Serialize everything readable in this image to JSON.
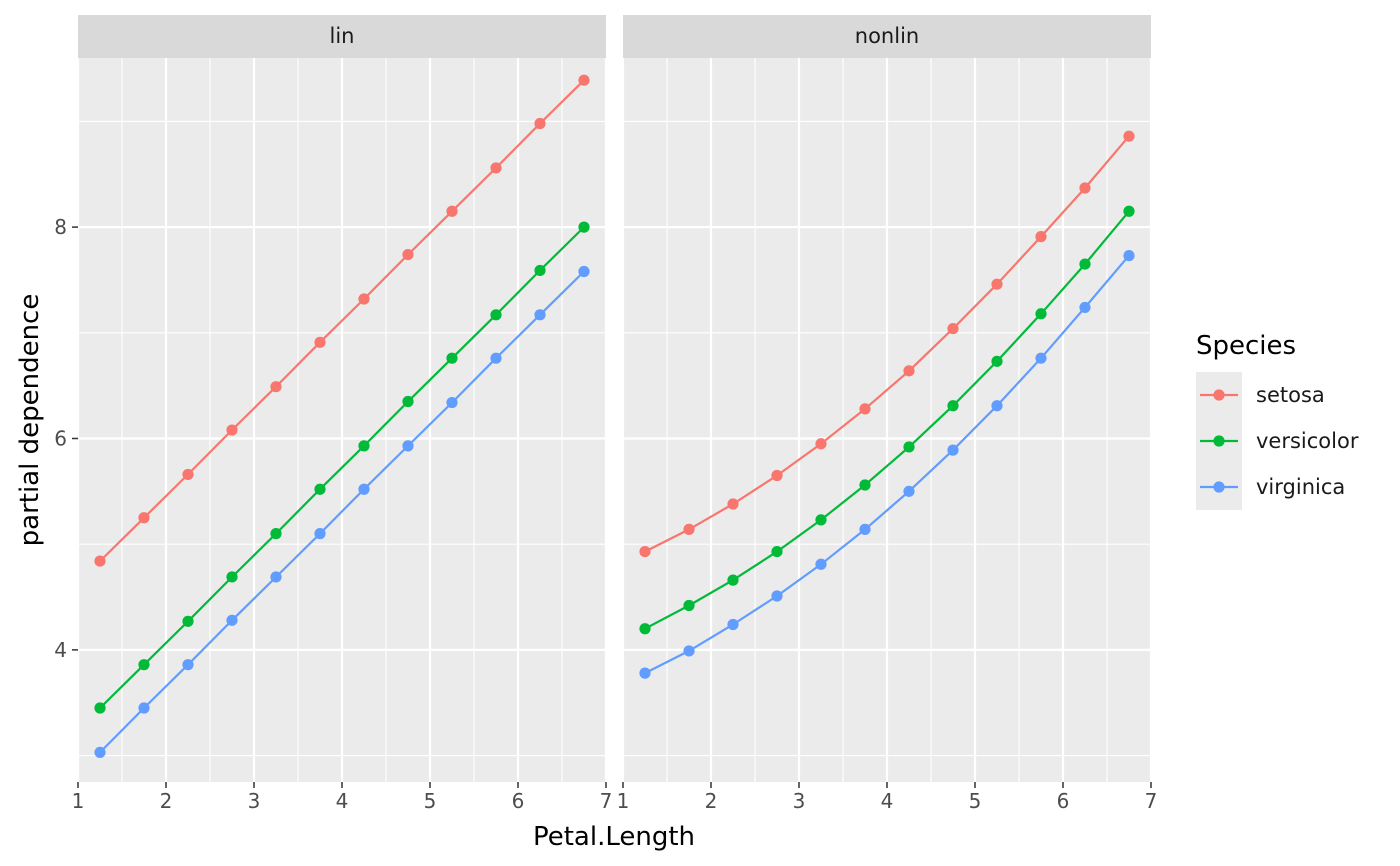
{
  "chart_data": {
    "type": "line",
    "xlabel": "Petal.Length",
    "ylabel": "partial dependence",
    "xlim": [
      1,
      7
    ],
    "ylim": [
      2.75,
      9.6
    ],
    "x_ticks": [
      1,
      2,
      3,
      4,
      5,
      6,
      7
    ],
    "y_ticks": [
      4,
      6,
      8
    ],
    "grid": true,
    "legend": {
      "title": "Species",
      "position": "right"
    },
    "x": [
      1.25,
      1.75,
      2.25,
      2.75,
      3.25,
      3.75,
      4.25,
      4.75,
      5.25,
      5.75,
      6.25,
      6.75
    ],
    "panels": [
      {
        "strip": "lin",
        "series": [
          {
            "name": "setosa",
            "color": "#F8766D",
            "values": [
              4.84,
              5.25,
              5.66,
              6.08,
              6.49,
              6.91,
              7.32,
              7.74,
              8.15,
              8.56,
              8.98,
              9.39
            ]
          },
          {
            "name": "versicolor",
            "color": "#00BA38",
            "values": [
              3.45,
              3.86,
              4.27,
              4.69,
              5.1,
              5.52,
              5.93,
              6.35,
              6.76,
              7.17,
              7.59,
              8.0
            ]
          },
          {
            "name": "virginica",
            "color": "#619CFF",
            "values": [
              3.03,
              3.45,
              3.86,
              4.28,
              4.69,
              5.1,
              5.52,
              5.93,
              6.34,
              6.76,
              7.17,
              7.58
            ]
          }
        ]
      },
      {
        "strip": "nonlin",
        "series": [
          {
            "name": "setosa",
            "color": "#F8766D",
            "values": [
              4.93,
              5.14,
              5.38,
              5.65,
              5.95,
              6.28,
              6.64,
              7.04,
              7.46,
              7.91,
              8.37,
              8.86
            ]
          },
          {
            "name": "versicolor",
            "color": "#00BA38",
            "values": [
              4.2,
              4.42,
              4.66,
              4.93,
              5.23,
              5.56,
              5.92,
              6.31,
              6.73,
              7.18,
              7.65,
              8.15
            ]
          },
          {
            "name": "virginica",
            "color": "#619CFF",
            "values": [
              3.78,
              3.99,
              4.24,
              4.51,
              4.81,
              5.14,
              5.5,
              5.89,
              6.31,
              6.76,
              7.24,
              7.73
            ]
          }
        ]
      }
    ]
  }
}
